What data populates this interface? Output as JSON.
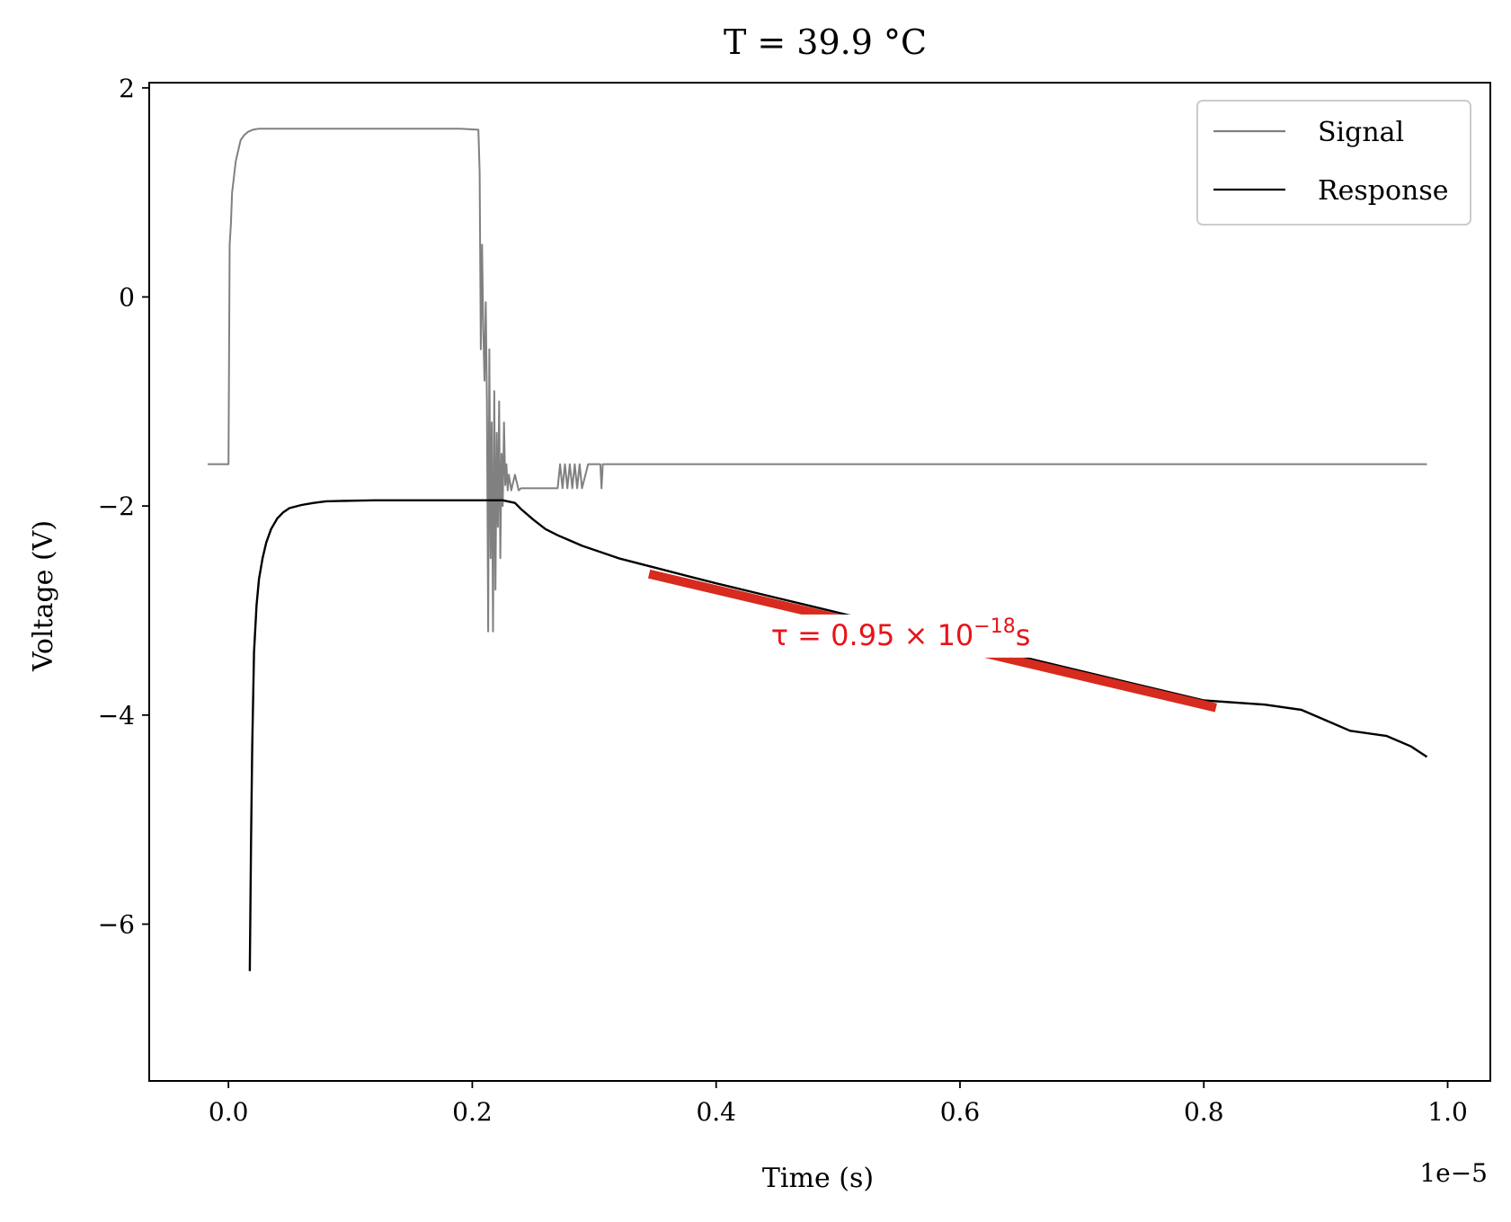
{
  "chart_data": {
    "type": "line",
    "title": "T = 39.9 °C",
    "xlabel": "Time (s)",
    "ylabel": "Voltage (V)",
    "x_offset_text": "1e−5",
    "xlim": [
      -0.065,
      1.035
    ],
    "ylim": [
      -7.5,
      2.05
    ],
    "x_ticks": [
      0.0,
      0.2,
      0.4,
      0.6,
      0.8,
      1.0
    ],
    "x_tick_labels": [
      "0.0",
      "0.2",
      "0.4",
      "0.6",
      "0.8",
      "1.0"
    ],
    "y_ticks": [
      2,
      0,
      -2,
      -4,
      -6
    ],
    "y_tick_labels": [
      "2",
      "0",
      "−2",
      "−4",
      "−6"
    ],
    "legend_position": "top-right",
    "series": [
      {
        "name": "Signal",
        "color": "#808080",
        "x": [
          -0.017,
          0.0,
          0.001,
          0.002,
          0.003,
          0.004,
          0.006,
          0.008,
          0.01,
          0.013,
          0.016,
          0.02,
          0.025,
          0.03,
          0.04,
          0.06,
          0.1,
          0.15,
          0.19,
          0.205,
          0.206,
          0.207,
          0.208,
          0.209,
          0.21,
          0.211,
          0.212,
          0.213,
          0.214,
          0.215,
          0.216,
          0.217,
          0.218,
          0.219,
          0.22,
          0.221,
          0.222,
          0.223,
          0.224,
          0.225,
          0.226,
          0.227,
          0.228,
          0.229,
          0.23,
          0.232,
          0.235,
          0.238,
          0.24,
          0.27,
          0.272,
          0.274,
          0.276,
          0.278,
          0.28,
          0.282,
          0.284,
          0.286,
          0.288,
          0.29,
          0.295,
          0.3,
          0.305,
          0.306,
          0.307,
          0.31,
          0.5,
          0.7,
          0.9,
          0.983
        ],
        "y": [
          -1.6,
          -1.6,
          0.5,
          0.7,
          1.0,
          1.1,
          1.3,
          1.4,
          1.5,
          1.55,
          1.58,
          1.6,
          1.61,
          1.61,
          1.61,
          1.61,
          1.61,
          1.61,
          1.61,
          1.6,
          1.2,
          -0.5,
          0.5,
          -0.3,
          -0.8,
          -0.05,
          -1.0,
          -3.2,
          -0.5,
          -2.5,
          -1.2,
          -3.2,
          -0.9,
          -2.8,
          -1.3,
          -2.2,
          -1.0,
          -2.5,
          -1.5,
          -2.0,
          -1.2,
          -1.8,
          -1.6,
          -1.85,
          -1.7,
          -1.85,
          -1.7,
          -1.85,
          -1.83,
          -1.83,
          -1.6,
          -1.83,
          -1.6,
          -1.83,
          -1.6,
          -1.83,
          -1.6,
          -1.83,
          -1.6,
          -1.83,
          -1.6,
          -1.6,
          -1.6,
          -1.83,
          -1.6,
          -1.6,
          -1.6,
          -1.6,
          -1.6,
          -1.6
        ]
      },
      {
        "name": "Response",
        "color": "#000000",
        "x": [
          0.0175,
          0.0185,
          0.0195,
          0.021,
          0.023,
          0.025,
          0.028,
          0.031,
          0.035,
          0.04,
          0.045,
          0.05,
          0.06,
          0.07,
          0.08,
          0.1,
          0.12,
          0.15,
          0.2,
          0.225,
          0.235,
          0.24,
          0.25,
          0.26,
          0.27,
          0.28,
          0.29,
          0.3,
          0.32,
          0.34,
          0.36,
          0.38,
          0.4,
          0.45,
          0.5,
          0.55,
          0.6,
          0.65,
          0.7,
          0.75,
          0.8,
          0.85,
          0.88,
          0.9,
          0.92,
          0.95,
          0.97,
          0.983
        ],
        "y": [
          -6.45,
          -5.2,
          -4.3,
          -3.4,
          -2.95,
          -2.7,
          -2.5,
          -2.35,
          -2.22,
          -2.12,
          -2.06,
          -2.02,
          -1.99,
          -1.97,
          -1.955,
          -1.95,
          -1.945,
          -1.945,
          -1.945,
          -1.945,
          -1.97,
          -2.03,
          -2.13,
          -2.22,
          -2.28,
          -2.33,
          -2.38,
          -2.42,
          -2.5,
          -2.56,
          -2.62,
          -2.68,
          -2.74,
          -2.88,
          -3.02,
          -3.16,
          -3.3,
          -3.44,
          -3.58,
          -3.72,
          -3.86,
          -3.9,
          -3.95,
          -4.05,
          -4.15,
          -4.2,
          -4.3,
          -4.4
        ]
      }
    ],
    "fit_line": {
      "color": "#d62b1e",
      "x": [
        0.345,
        0.81
      ],
      "y": [
        -2.65,
        -3.93
      ]
    },
    "annotation": {
      "text": "τ = 0.95 × 10",
      "superscript": "−18",
      "suffix": "s",
      "x": 0.445,
      "y": -3.33,
      "color": "#e8141a"
    }
  }
}
